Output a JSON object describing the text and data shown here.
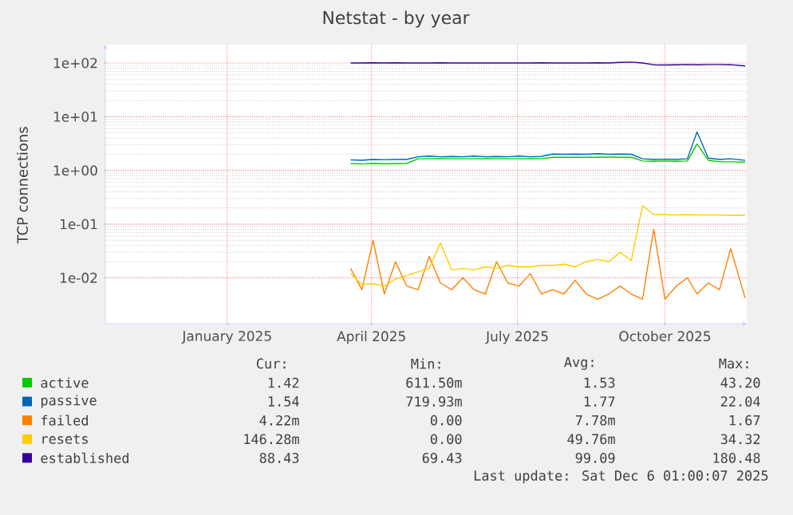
{
  "chart_data": {
    "type": "line",
    "title": "Netstat - by year",
    "ylabel": "TCP connections",
    "x": [
      "2025-04-03",
      "2025-04-10",
      "2025-04-17",
      "2025-04-24",
      "2025-05-01",
      "2025-05-08",
      "2025-05-15",
      "2025-05-22",
      "2025-05-29",
      "2025-06-05",
      "2025-06-12",
      "2025-06-19",
      "2025-06-26",
      "2025-07-03",
      "2025-07-10",
      "2025-07-17",
      "2025-07-24",
      "2025-07-31",
      "2025-08-07",
      "2025-08-14",
      "2025-08-21",
      "2025-08-28",
      "2025-09-04",
      "2025-09-11",
      "2025-09-18",
      "2025-09-25",
      "2025-10-02",
      "2025-10-09",
      "2025-10-16",
      "2025-10-23",
      "2025-10-30",
      "2025-11-05",
      "2025-11-12",
      "2025-11-19",
      "2025-11-26",
      "2025-12-05"
    ],
    "series": [
      {
        "name": "active",
        "color": "#00cc00",
        "values": [
          1.34,
          1.32,
          1.35,
          1.33,
          1.34,
          1.35,
          1.65,
          1.65,
          1.66,
          1.65,
          1.65,
          1.65,
          1.66,
          1.65,
          1.65,
          1.65,
          1.66,
          1.65,
          1.76,
          1.76,
          1.76,
          1.76,
          1.76,
          1.77,
          1.76,
          1.76,
          1.5,
          1.48,
          1.5,
          1.48,
          1.5,
          3.1,
          1.55,
          1.45,
          1.45,
          1.42
        ]
      },
      {
        "name": "passive",
        "color": "#0066b3",
        "values": [
          1.57,
          1.55,
          1.6,
          1.58,
          1.6,
          1.6,
          1.8,
          1.85,
          1.8,
          1.82,
          1.8,
          1.85,
          1.8,
          1.82,
          1.8,
          1.85,
          1.8,
          1.82,
          2.02,
          2.0,
          2.02,
          2.0,
          2.05,
          2.0,
          2.02,
          2.0,
          1.65,
          1.6,
          1.62,
          1.6,
          1.65,
          5.2,
          1.7,
          1.6,
          1.65,
          1.54
        ]
      },
      {
        "name": "failed",
        "color": "#ff8000",
        "values": [
          0.015,
          0.006,
          0.05,
          0.005,
          0.02,
          0.007,
          0.006,
          0.025,
          0.008,
          0.006,
          0.01,
          0.006,
          0.005,
          0.02,
          0.008,
          0.007,
          0.012,
          0.005,
          0.006,
          0.005,
          0.009,
          0.005,
          0.004,
          0.005,
          0.007,
          0.005,
          0.004,
          0.08,
          0.004,
          0.007,
          0.01,
          0.005,
          0.008,
          0.006,
          0.035,
          0.0042
        ]
      },
      {
        "name": "resets",
        "color": "#ffcc00",
        "values": [
          0.012,
          0.0075,
          0.0078,
          0.007,
          0.0095,
          0.011,
          0.013,
          0.015,
          0.045,
          0.014,
          0.015,
          0.014,
          0.016,
          0.015,
          0.017,
          0.016,
          0.016,
          0.017,
          0.017,
          0.018,
          0.016,
          0.02,
          0.022,
          0.02,
          0.03,
          0.021,
          0.22,
          0.15,
          0.15,
          0.148,
          0.15,
          0.148,
          0.148,
          0.148,
          0.146,
          0.146
        ]
      },
      {
        "name": "established",
        "color": "#330099",
        "values": [
          100,
          100,
          101,
          100,
          101,
          100,
          100,
          100,
          101,
          100,
          100,
          100,
          100,
          100,
          100,
          100,
          100,
          101,
          100,
          100,
          100,
          100,
          101,
          100,
          103,
          104,
          100,
          93,
          92,
          93,
          94,
          93,
          94,
          94,
          93,
          88
        ]
      }
    ],
    "xlim": [
      "2024-11-01",
      "2025-12-06"
    ],
    "xticks": [
      {
        "value": "2025-01-16",
        "label": "January 2025"
      },
      {
        "value": "2025-04-16",
        "label": "April 2025"
      },
      {
        "value": "2025-07-16",
        "label": "July 2025"
      },
      {
        "value": "2025-10-16",
        "label": "October 2025"
      }
    ],
    "log": true,
    "ylim": [
      0.0014,
      220
    ],
    "yticks": [
      {
        "value": 0.01,
        "label": "1e-02"
      },
      {
        "value": 0.1,
        "label": "1e-01"
      },
      {
        "value": 1,
        "label": "1e+00"
      },
      {
        "value": 10,
        "label": "1e+01"
      },
      {
        "value": 100,
        "label": "1e+02"
      }
    ],
    "grid": true,
    "legend": "bottom",
    "marker": "none",
    "line_style": "solid",
    "annotations": [
      "Cur:",
      "Min:",
      "Avg:",
      "Max:",
      "1.42",
      "611.50m",
      "1.53",
      "43.20",
      "1.54",
      "719.93m",
      "1.77",
      "22.04",
      "4.22m",
      "0.00",
      "7.78m",
      "1.67",
      "146.28m",
      "0.00",
      "49.76m",
      "34.32",
      "88.43",
      "69.43",
      "99.09",
      "180.48",
      "Last update: Sat Dec  6 01:00:07 2025"
    ]
  }
}
